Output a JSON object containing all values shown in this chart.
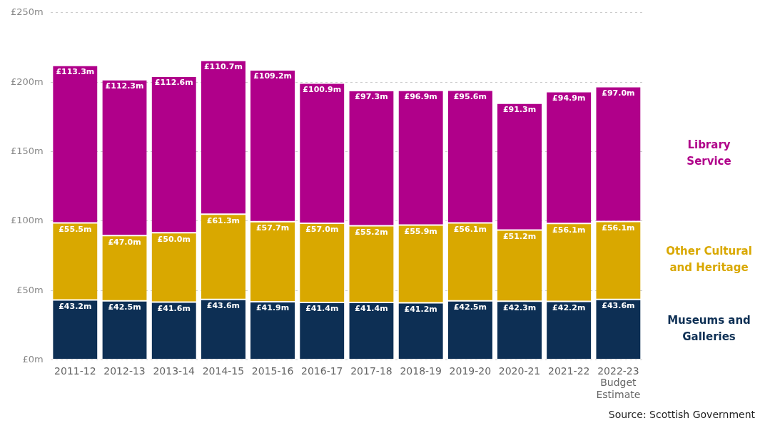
{
  "chart_data": {
    "type": "bar",
    "stacked": true,
    "categories": [
      "2011-12",
      "2012-13",
      "2013-14",
      "2014-15",
      "2015-16",
      "2016-17",
      "2017-18",
      "2018-19",
      "2019-20",
      "2020-21",
      "2021-22",
      "2022-23\nBudget\nEstimate"
    ],
    "series": [
      {
        "name": "Museums and Galleries",
        "color": "#0d2f54",
        "values": [
          43.2,
          42.5,
          41.6,
          43.6,
          41.9,
          41.4,
          41.4,
          41.2,
          42.5,
          42.3,
          42.2,
          43.6
        ],
        "value_labels": [
          "£43.2m",
          "£42.5m",
          "£41.6m",
          "£43.6m",
          "£41.9m",
          "£41.4m",
          "£41.4m",
          "£41.2m",
          "£42.5m",
          "£42.3m",
          "£42.2m",
          "£43.6m"
        ]
      },
      {
        "name": "Other Cultural and Heritage",
        "color": "#d9a800",
        "values": [
          55.5,
          47.0,
          50.0,
          61.3,
          57.7,
          57.0,
          55.2,
          55.9,
          56.1,
          51.2,
          56.1,
          56.1
        ],
        "value_labels": [
          "£55.5m",
          "£47.0m",
          "£50.0m",
          "£61.3m",
          "£57.7m",
          "£57.0m",
          "£55.2m",
          "£55.9m",
          "£56.1m",
          "£51.2m",
          "£56.1m",
          "£56.1m"
        ]
      },
      {
        "name": "Library Service",
        "color": "#b0008a",
        "values": [
          113.3,
          112.3,
          112.6,
          110.7,
          109.2,
          100.9,
          97.3,
          96.9,
          95.6,
          91.3,
          94.9,
          97.0
        ],
        "value_labels": [
          "£113.3m",
          "£112.3m",
          "£112.6m",
          "£110.7m",
          "£109.2m",
          "£100.9m",
          "£97.3m",
          "£96.9m",
          "£95.6m",
          "£91.3m",
          "£94.9m",
          "£97.0m"
        ]
      }
    ],
    "ylim": [
      0,
      250
    ],
    "yticks": [
      {
        "value": 0,
        "label": "£0m"
      },
      {
        "value": 50,
        "label": "£50m"
      },
      {
        "value": 100,
        "label": "£100m"
      },
      {
        "value": 150,
        "label": "£150m"
      },
      {
        "value": 200,
        "label": "£200m"
      },
      {
        "value": 250,
        "label": "£250m"
      }
    ],
    "grid": "y",
    "legend": "right",
    "annotations": [
      "Source: Scottish Government"
    ]
  }
}
